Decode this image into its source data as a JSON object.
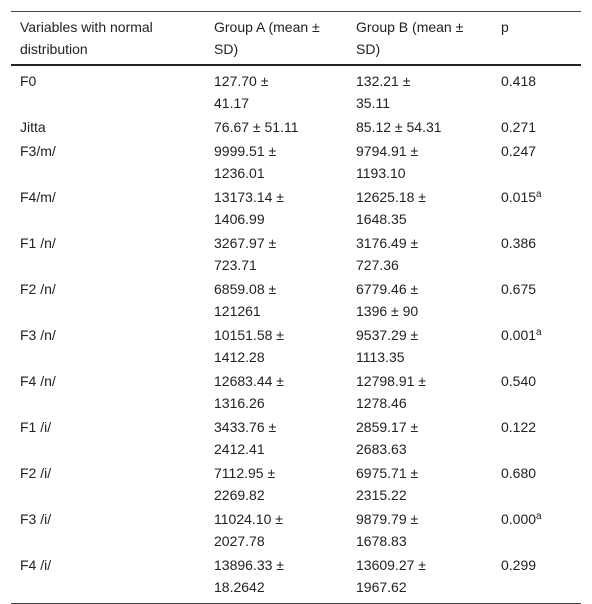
{
  "table": {
    "header": [
      "Variables with normal distribution",
      "Group A (mean ± SD)",
      "Group B (mean ± SD)",
      "p"
    ],
    "rows": [
      {
        "variable": "F0",
        "group_a": "127.70 ± 41.17",
        "group_b": "132.21 ± 35.11",
        "p": "0.418"
      },
      {
        "variable": "Jitta",
        "group_a": "76.67 ± 51.11",
        "group_b": "85.12 ± 54.31",
        "p": "0.271"
      },
      {
        "variable": "F3/m/",
        "group_a": "9999.51 ± 1236.01",
        "group_b": "9794.91 ± 1193.10",
        "p": "0.247"
      },
      {
        "variable": "F4/m/",
        "group_a": "13173.14 ± 1406.99",
        "group_b": "12625.18 ± 1648.35",
        "p": "0.015",
        "p_note": "a"
      },
      {
        "variable": "F1 /n/",
        "group_a": "3267.97 ± 723.71",
        "group_b": "3176.49 ± 727.36",
        "p": "0.386"
      },
      {
        "variable": "F2 /n/",
        "group_a": "6859.08 ± 121261",
        "group_b": "6779.46 ± 1396 ± 90",
        "p": "0.675"
      },
      {
        "variable": "F3 /n/",
        "group_a": "10151.58 ± 1412.28",
        "group_b": "9537.29 ± 1113.35",
        "p": "0.001",
        "p_note": "a"
      },
      {
        "variable": "F4 /n/",
        "group_a": "12683.44 ± 1316.26",
        "group_b": "12798.91 ± 1278.46",
        "p": "0.540"
      },
      {
        "variable": "F1 /i/",
        "group_a": "3433.76 ± 2412.41",
        "group_b": "2859.17 ± 2683.63",
        "p": "0.122"
      },
      {
        "variable": "F2 /i/",
        "group_a": "7112.95 ± 2269.82",
        "group_b": "6975.71 ± 2315.22",
        "p": "0.680"
      },
      {
        "variable": "F3 /i/",
        "group_a": "11024.10 ± 2027.78",
        "group_b": "9879.79 ± 1678.83",
        "p": "0.000",
        "p_note": "a"
      },
      {
        "variable": "F4 /i/",
        "group_a": "13896.33 ± 18.2642",
        "group_b": "13609.27 ± 1967.62",
        "p": "0.299"
      }
    ]
  }
}
